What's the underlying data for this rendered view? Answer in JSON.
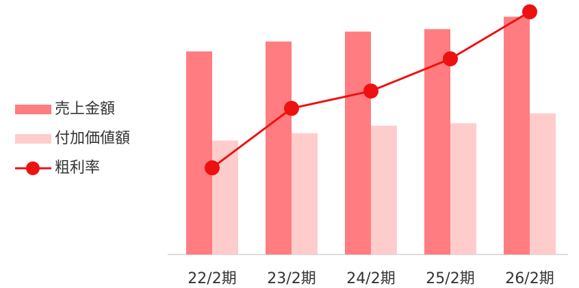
{
  "chart_data": {
    "type": "bar_line",
    "categories": [
      "22/2期",
      "23/2期",
      "24/2期",
      "25/2期",
      "26/2期"
    ],
    "series": [
      {
        "name": "売上金額",
        "color": "#ff7c80",
        "type": "bar",
        "values": [
          82,
          86,
          90,
          91,
          96
        ]
      },
      {
        "name": "付加価値額",
        "color": "#ffcccc",
        "type": "bar",
        "values": [
          46,
          49,
          52,
          53,
          57
        ]
      },
      {
        "name": "粗利率",
        "color": "#ee1111",
        "type": "line",
        "axis": "y2",
        "values": [
          35,
          59,
          66,
          79,
          98
        ]
      }
    ],
    "ylim": [
      0,
      100
    ],
    "y2lim": [
      0,
      100
    ],
    "legend": "left"
  }
}
